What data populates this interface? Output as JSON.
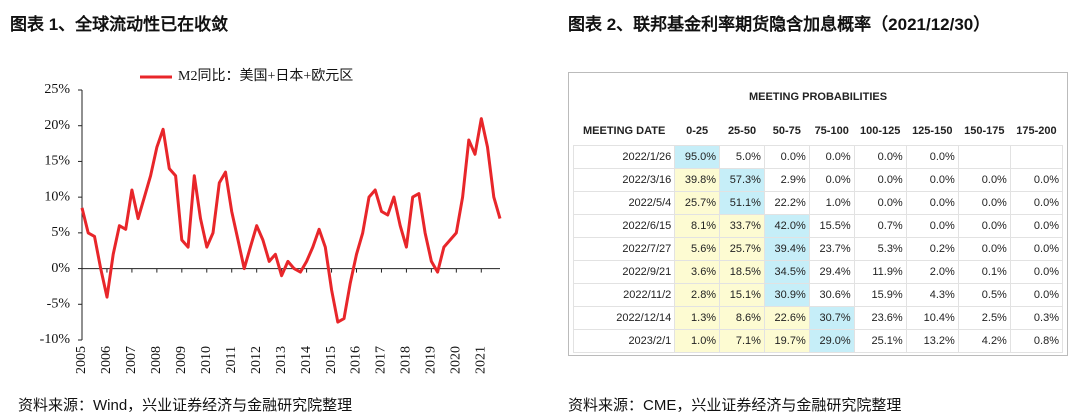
{
  "chart_data": {
    "type": "line",
    "title": "图表 1、全球流动性已在收敛",
    "source": "资料来源：Wind，兴业证券经济与金融研究院整理",
    "x": [
      2005,
      2005.25,
      2005.5,
      2005.75,
      2006,
      2006.25,
      2006.5,
      2006.75,
      2007,
      2007.25,
      2007.5,
      2007.75,
      2008,
      2008.25,
      2008.5,
      2008.75,
      2009,
      2009.25,
      2009.5,
      2009.75,
      2010,
      2010.25,
      2010.5,
      2010.75,
      2011,
      2011.25,
      2011.5,
      2011.75,
      2012,
      2012.25,
      2012.5,
      2012.75,
      2013,
      2013.25,
      2013.5,
      2013.75,
      2014,
      2014.25,
      2014.5,
      2014.75,
      2015,
      2015.25,
      2015.5,
      2015.75,
      2016,
      2016.25,
      2016.5,
      2016.75,
      2017,
      2017.25,
      2017.5,
      2017.75,
      2018,
      2018.25,
      2018.5,
      2018.75,
      2019,
      2019.25,
      2019.5,
      2019.75,
      2020,
      2020.25,
      2020.5,
      2020.75,
      2021,
      2021.25,
      2021.5,
      2021.75
    ],
    "series": [
      {
        "name": "M2同比：美国+日本+欧元区",
        "color": "#e8262a",
        "values": [
          8.5,
          5,
          4.5,
          0,
          -4,
          2,
          6,
          5.5,
          11,
          7,
          10,
          13,
          17,
          19.5,
          14,
          13,
          4,
          3,
          13,
          7,
          3,
          5,
          12,
          13.5,
          8,
          4,
          0,
          3,
          6,
          4,
          1,
          2,
          -1,
          1,
          0,
          -0.5,
          1,
          3,
          5.5,
          3,
          -3,
          -7.5,
          -7,
          -2,
          2,
          5,
          10,
          11,
          8,
          7.5,
          10,
          6,
          3,
          10,
          10.5,
          5,
          1,
          -0.5,
          3,
          4,
          5,
          10,
          18,
          16,
          21,
          17,
          10,
          7
        ]
      }
    ],
    "xlim": [
      2005,
      2021.75
    ],
    "xticks": [
      2005,
      2006,
      2007,
      2008,
      2009,
      2010,
      2011,
      2012,
      2013,
      2014,
      2015,
      2016,
      2017,
      2018,
      2019,
      2020,
      2021
    ],
    "ylim": [
      -10,
      25
    ],
    "yticks": [
      {
        "value": -10,
        "label": "-10%"
      },
      {
        "value": -5,
        "label": "-5%"
      },
      {
        "value": 0,
        "label": "0%"
      },
      {
        "value": 5,
        "label": "5%"
      },
      {
        "value": 10,
        "label": "10%"
      },
      {
        "value": 15,
        "label": "15%"
      },
      {
        "value": 20,
        "label": "20%"
      },
      {
        "value": 25,
        "label": "25%"
      }
    ],
    "grid": false,
    "legend": "top"
  },
  "table": {
    "caption": "图表 2、联邦基金利率期货隐含加息概率（2021/12/30）",
    "title": "MEETING PROBABILITIES",
    "header": [
      "MEETING DATE",
      "0-25",
      "25-50",
      "50-75",
      "75-100",
      "100-125",
      "125-150",
      "150-175",
      "175-200"
    ],
    "rows": [
      [
        "2022/1/26",
        "95.0%",
        "5.0%",
        "0.0%",
        "0.0%",
        "0.0%",
        "0.0%",
        null,
        null
      ],
      [
        "2022/3/16",
        "39.8%",
        "57.3%",
        "2.9%",
        "0.0%",
        "0.0%",
        "0.0%",
        "0.0%",
        "0.0%"
      ],
      [
        "2022/5/4",
        "25.7%",
        "51.1%",
        "22.2%",
        "1.0%",
        "0.0%",
        "0.0%",
        "0.0%",
        "0.0%"
      ],
      [
        "2022/6/15",
        "8.1%",
        "33.7%",
        "42.0%",
        "15.5%",
        "0.7%",
        "0.0%",
        "0.0%",
        "0.0%"
      ],
      [
        "2022/7/27",
        "5.6%",
        "25.7%",
        "39.4%",
        "23.7%",
        "5.3%",
        "0.2%",
        "0.0%",
        "0.0%"
      ],
      [
        "2022/9/21",
        "3.6%",
        "18.5%",
        "34.5%",
        "29.4%",
        "11.9%",
        "2.0%",
        "0.1%",
        "0.0%"
      ],
      [
        "2022/11/2",
        "2.8%",
        "15.1%",
        "30.9%",
        "30.6%",
        "15.9%",
        "4.3%",
        "0.5%",
        "0.0%"
      ],
      [
        "2022/12/14",
        "1.3%",
        "8.6%",
        "22.6%",
        "30.7%",
        "23.6%",
        "10.4%",
        "2.5%",
        "0.3%"
      ],
      [
        "2023/2/1",
        "1.0%",
        "7.1%",
        "19.7%",
        "29.0%",
        "25.1%",
        "13.2%",
        "4.2%",
        "0.8%"
      ]
    ],
    "source": "资料来源：CME，兴业证券经济与金融研究院整理"
  }
}
